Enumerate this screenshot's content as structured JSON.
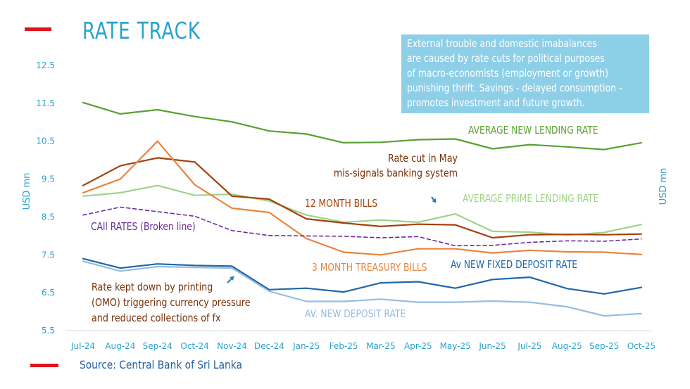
{
  "title": "RATE TRACK",
  "source": "Source: Central Bank of Sri Lanka",
  "info_box": "External trouble and domestic imabalances\nare caused by rate cuts for political purposes\nof macro-economists (employment or growth)\npunishing thrift. Savings - delayed consumption -\npromotes investment and future growth.",
  "colors": {
    "title": "#29a3cc",
    "accent_red": "#e0141b",
    "info_box": "#8ecfe8",
    "axis_text": "#29a3cc"
  },
  "chart_data": {
    "type": "line",
    "categories": [
      "Jul-24",
      "Aug-24",
      "Sep-24",
      "Oct-24",
      "Nov-24",
      "Dec-24",
      "Jan-25",
      "Feb-25",
      "Mar-25",
      "Apr-25",
      "May-25",
      "Jun-25",
      "Jul-25",
      "Aug-25",
      "Sep-25",
      "Oct-25"
    ],
    "ylabel_left": "USD mn",
    "ylabel_right": "USD mn",
    "ylim": [
      5.5,
      12.5
    ],
    "yticks": [
      "12.5",
      "11.5",
      "10.5",
      "9.5",
      "8.5",
      "7.5",
      "6.5",
      "5.5"
    ],
    "grid": false,
    "series": [
      {
        "name": "AVERAGE NEW LENDING RATE",
        "color": "#5aa032",
        "dashed": false,
        "width": 2.2,
        "values": [
          11.52,
          11.22,
          11.33,
          11.15,
          11.01,
          10.77,
          10.69,
          10.46,
          10.47,
          10.54,
          10.56,
          10.3,
          10.41,
          10.35,
          10.28,
          10.46
        ]
      },
      {
        "name": "AVERAGE PRIME LENDING RATE",
        "color": "#9fd389",
        "dashed": false,
        "width": 2.2,
        "values": [
          9.05,
          9.14,
          9.33,
          9.07,
          9.1,
          8.92,
          8.55,
          8.36,
          8.42,
          8.36,
          8.58,
          8.12,
          8.1,
          8.02,
          8.09,
          8.3
        ]
      },
      {
        "name": "12 MONTH BILLS",
        "color": "#a4410b",
        "dashed": false,
        "width": 2.2,
        "values": [
          9.33,
          9.85,
          10.06,
          9.95,
          9.05,
          8.97,
          8.45,
          8.34,
          8.25,
          8.31,
          8.29,
          7.95,
          8.03,
          8.04,
          8.03,
          8.05
        ]
      },
      {
        "name": "3 MONTH TREASURY BILLS",
        "color": "#e8843d",
        "dashed": false,
        "width": 2.2,
        "values": [
          9.14,
          9.5,
          10.5,
          9.35,
          8.73,
          8.62,
          7.93,
          7.57,
          7.5,
          7.66,
          7.66,
          7.55,
          7.62,
          7.58,
          7.57,
          7.51
        ]
      },
      {
        "name": "CAll RATES (Broken line)",
        "color": "#6a2c9a",
        "dashed": true,
        "width": 1.6,
        "values": [
          8.55,
          8.76,
          8.64,
          8.52,
          8.14,
          8.01,
          8.0,
          7.99,
          7.95,
          7.98,
          7.74,
          7.75,
          7.83,
          7.87,
          7.86,
          7.92
        ]
      },
      {
        "name": "Av NEW FIXED DEPOSIT RATE",
        "color": "#1f67a8",
        "dashed": false,
        "width": 2.2,
        "values": [
          7.4,
          7.15,
          7.26,
          7.22,
          7.2,
          6.58,
          6.62,
          6.52,
          6.76,
          6.79,
          6.62,
          6.85,
          6.91,
          6.61,
          6.47,
          6.64
        ]
      },
      {
        "name": "AV. NEW DEPOSIT RATE",
        "color": "#95bde0",
        "dashed": false,
        "width": 2.2,
        "values": [
          7.33,
          7.07,
          7.19,
          7.17,
          7.15,
          6.54,
          6.27,
          6.27,
          6.33,
          6.25,
          6.25,
          6.28,
          6.25,
          6.13,
          5.89,
          5.95
        ]
      }
    ],
    "annotations": [
      {
        "text": "Rate cut in May",
        "color": "#7a3208"
      },
      {
        "text": "mis-signals banking system",
        "color": "#7a3208"
      },
      {
        "text": "Rate kept down by printing",
        "color": "#7a3208"
      },
      {
        "text": "(OMO) triggering currency pressure",
        "color": "#7a3208"
      },
      {
        "text": "and reduced collections of fx",
        "color": "#7a3208"
      }
    ]
  }
}
